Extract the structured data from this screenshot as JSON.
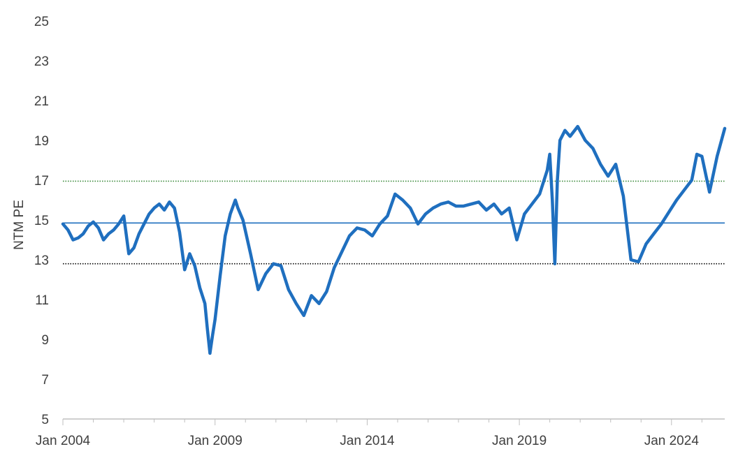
{
  "chart_data": {
    "type": "line",
    "title": "",
    "xlabel": "",
    "ylabel": "NTM PE",
    "ylim": [
      5,
      25
    ],
    "yticks": [
      "5",
      "7",
      "9",
      "11",
      "13",
      "15",
      "17",
      "19",
      "21",
      "23",
      "25"
    ],
    "xlim": [
      "2004-01",
      "2025-10"
    ],
    "xticks": [
      "Jan 2004",
      "Jan 2009",
      "Jan 2014",
      "Jan 2019",
      "Jan 2024"
    ],
    "grid": false,
    "legend": "none",
    "colors": {
      "series": "#1f6fbf",
      "average_line": "#1f6fbf",
      "upper_band": "#3a8a3a",
      "lower_band": "#000000",
      "axis": "#bfbfbf"
    },
    "reference_lines": [
      {
        "kind": "average",
        "value": 14.85,
        "style": "solid"
      },
      {
        "kind": "+1 std",
        "value": 16.95,
        "style": "dotted"
      },
      {
        "kind": "-1 std",
        "value": 12.8,
        "style": "dotted"
      }
    ],
    "series": [
      {
        "x": [
          "2004-01",
          "2004-03",
          "2004-05",
          "2004-07",
          "2004-09",
          "2004-11",
          "2005-01",
          "2005-03",
          "2005-05",
          "2005-07",
          "2005-09",
          "2005-11",
          "2006-01",
          "2006-03",
          "2006-05",
          "2006-07",
          "2006-09",
          "2006-11",
          "2007-01",
          "2007-03",
          "2007-05",
          "2007-07",
          "2007-09",
          "2007-11",
          "2008-01",
          "2008-03",
          "2008-05",
          "2008-07",
          "2008-09",
          "2008-10",
          "2008-11",
          "2008-12",
          "2009-01",
          "2009-03",
          "2009-05",
          "2009-07",
          "2009-09",
          "2009-10",
          "2009-12",
          "2010-03",
          "2010-06",
          "2010-09",
          "2010-12",
          "2011-03",
          "2011-06",
          "2011-09",
          "2011-12",
          "2012-03",
          "2012-06",
          "2012-09",
          "2012-12",
          "2013-03",
          "2013-06",
          "2013-09",
          "2013-12",
          "2014-03",
          "2014-06",
          "2014-09",
          "2014-12",
          "2015-03",
          "2015-06",
          "2015-09",
          "2015-12",
          "2016-03",
          "2016-06",
          "2016-09",
          "2016-12",
          "2017-03",
          "2017-06",
          "2017-09",
          "2017-12",
          "2018-03",
          "2018-06",
          "2018-09",
          "2018-12",
          "2019-03",
          "2019-06",
          "2019-09",
          "2019-12",
          "2020-01",
          "2020-02",
          "2020-03",
          "2020-04",
          "2020-05",
          "2020-07",
          "2020-09",
          "2020-12",
          "2021-03",
          "2021-06",
          "2021-09",
          "2021-12",
          "2022-03",
          "2022-06",
          "2022-09",
          "2022-12",
          "2023-03",
          "2023-06",
          "2023-09",
          "2023-12",
          "2024-03",
          "2024-06",
          "2024-09",
          "2024-11",
          "2025-01",
          "2025-04",
          "2025-07",
          "2025-10"
        ],
        "values": [
          14.8,
          14.5,
          14.0,
          14.1,
          14.3,
          14.7,
          14.9,
          14.6,
          14.0,
          14.3,
          14.5,
          14.8,
          15.2,
          13.3,
          13.6,
          14.3,
          14.8,
          15.3,
          15.6,
          15.8,
          15.5,
          15.9,
          15.6,
          14.4,
          12.5,
          13.3,
          12.7,
          11.6,
          10.8,
          9.5,
          8.3,
          9.2,
          10.0,
          12.2,
          14.2,
          15.3,
          16.0,
          15.6,
          15.0,
          13.3,
          11.5,
          12.3,
          12.8,
          12.7,
          11.5,
          10.8,
          10.2,
          11.2,
          10.8,
          11.4,
          12.6,
          13.4,
          14.2,
          14.6,
          14.5,
          14.2,
          14.8,
          15.2,
          16.3,
          16.0,
          15.6,
          14.8,
          15.3,
          15.6,
          15.8,
          15.9,
          15.7,
          15.7,
          15.8,
          15.9,
          15.5,
          15.8,
          15.3,
          15.6,
          14.0,
          15.3,
          15.8,
          16.3,
          17.5,
          18.3,
          16.0,
          12.8,
          17.0,
          19.0,
          19.5,
          19.2,
          19.7,
          19.0,
          18.6,
          17.8,
          17.2,
          17.8,
          16.2,
          13.0,
          12.9,
          13.8,
          14.3,
          14.8,
          15.4,
          16.0,
          16.5,
          17.0,
          18.3,
          18.2,
          16.4,
          18.2,
          19.6
        ]
      }
    ]
  }
}
